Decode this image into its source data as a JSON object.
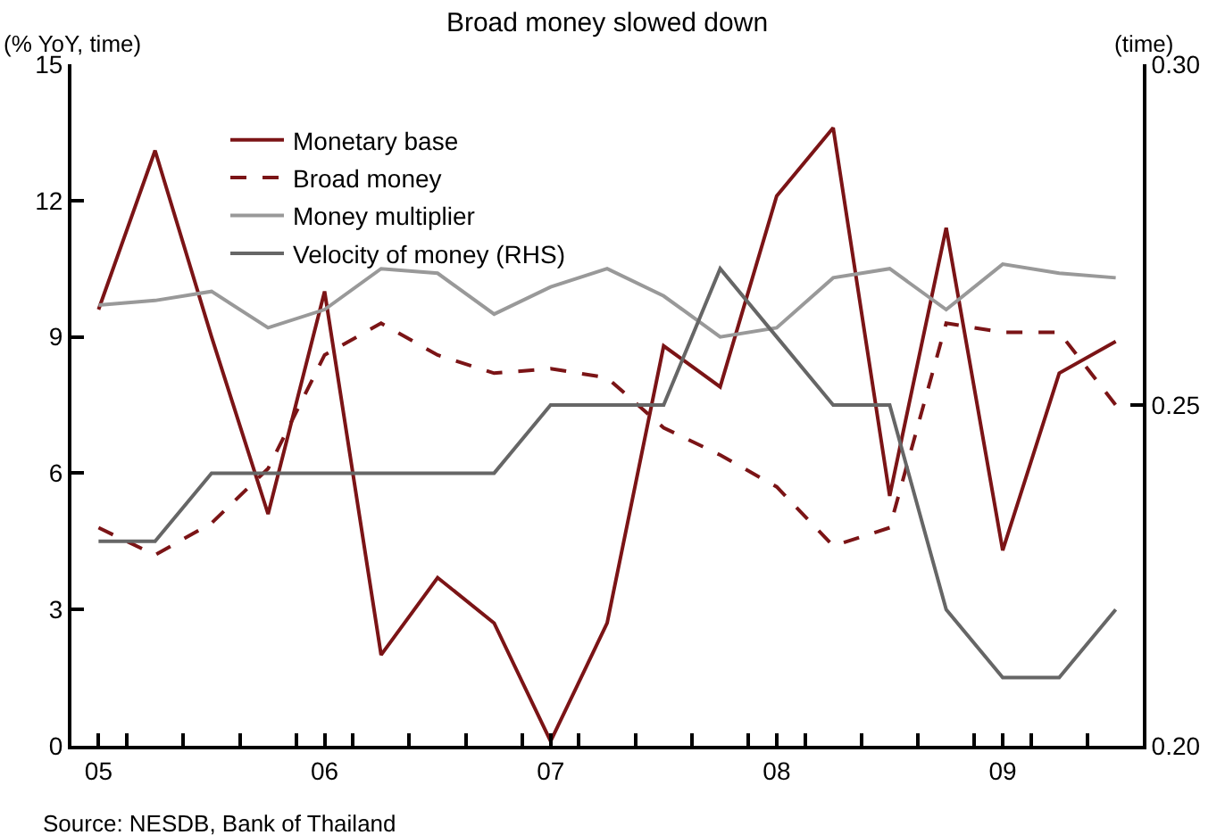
{
  "chart_data": {
    "type": "line",
    "title": "Broad money slowed down",
    "ylabel": "(% YoY, time)",
    "y2label": "(time)",
    "annotations": [
      "Source: NESDB, Bank of Thailand"
    ],
    "x": [
      2005,
      2005.25,
      2005.5,
      2005.75,
      2006,
      2006.25,
      2006.5,
      2006.75,
      2007,
      2007.25,
      2007.5,
      2007.75,
      2008,
      2008.25,
      2008.5,
      2008.75,
      2009,
      2009.25,
      2009.5
    ],
    "series": [
      {
        "name": "Monetary base",
        "color": "#7b1416",
        "line_style": "solid",
        "values": [
          9.6,
          13.1,
          9.0,
          5.1,
          10.0,
          2.0,
          3.7,
          2.7,
          0.1,
          2.7,
          8.8,
          7.9,
          12.1,
          13.6,
          5.5,
          11.4,
          4.3,
          8.2,
          8.9
        ]
      },
      {
        "name": "Broad money",
        "color": "#7b1416",
        "line_style": "dashed",
        "values": [
          4.8,
          4.2,
          4.9,
          6.1,
          8.6,
          9.3,
          8.6,
          8.2,
          8.3,
          8.1,
          7.0,
          6.4,
          5.7,
          4.4,
          4.8,
          9.3,
          9.1,
          9.1,
          7.5
        ]
      },
      {
        "name": "Money multiplier",
        "color": "#999999",
        "line_style": "solid",
        "values": [
          9.7,
          9.8,
          10.0,
          9.2,
          9.6,
          10.5,
          10.4,
          9.5,
          10.1,
          10.5,
          9.9,
          9.0,
          9.2,
          10.3,
          10.5,
          9.6,
          10.6,
          10.4,
          10.3
        ]
      },
      {
        "name": "Velocity of money (RHS)",
        "color": "#666666",
        "line_style": "solid",
        "axis": "y2",
        "values": [
          0.23,
          0.23,
          0.24,
          0.24,
          0.24,
          0.24,
          0.24,
          0.24,
          0.25,
          0.25,
          0.25,
          0.27,
          0.26,
          0.25,
          0.25,
          0.22,
          0.21,
          0.21,
          0.22
        ]
      }
    ],
    "xlim": [
      2004.88,
      2009.62
    ],
    "xticks": [
      {
        "value": 2005,
        "label": "05"
      },
      {
        "value": 2006,
        "label": "06"
      },
      {
        "value": 2007,
        "label": "07"
      },
      {
        "value": 2008,
        "label": "08"
      },
      {
        "value": 2009,
        "label": "09"
      },
      {
        "value": 2005.125,
        "label": null
      },
      {
        "value": 2005.375,
        "label": null
      },
      {
        "value": 2005.625,
        "label": null
      },
      {
        "value": 2005.875,
        "label": null
      },
      {
        "value": 2006.125,
        "label": null
      },
      {
        "value": 2006.375,
        "label": null
      },
      {
        "value": 2006.625,
        "label": null
      },
      {
        "value": 2006.875,
        "label": null
      },
      {
        "value": 2007.125,
        "label": null
      },
      {
        "value": 2007.375,
        "label": null
      },
      {
        "value": 2007.625,
        "label": null
      },
      {
        "value": 2007.875,
        "label": null
      },
      {
        "value": 2008.125,
        "label": null
      },
      {
        "value": 2008.375,
        "label": null
      },
      {
        "value": 2008.625,
        "label": null
      },
      {
        "value": 2008.875,
        "label": null
      },
      {
        "value": 2009.125,
        "label": null
      },
      {
        "value": 2009.375,
        "label": null
      }
    ],
    "ylim": [
      0,
      15
    ],
    "yticks": [
      0,
      3,
      6,
      9,
      12,
      15
    ],
    "y2lim": [
      0.2,
      0.3
    ],
    "y2ticks": [
      {
        "value": 0.2,
        "label": "0.20"
      },
      {
        "value": 0.25,
        "label": "0.25"
      },
      {
        "value": 0.3,
        "label": "0.30"
      }
    ],
    "grid": false,
    "legend": "top left",
    "marker": "none"
  }
}
